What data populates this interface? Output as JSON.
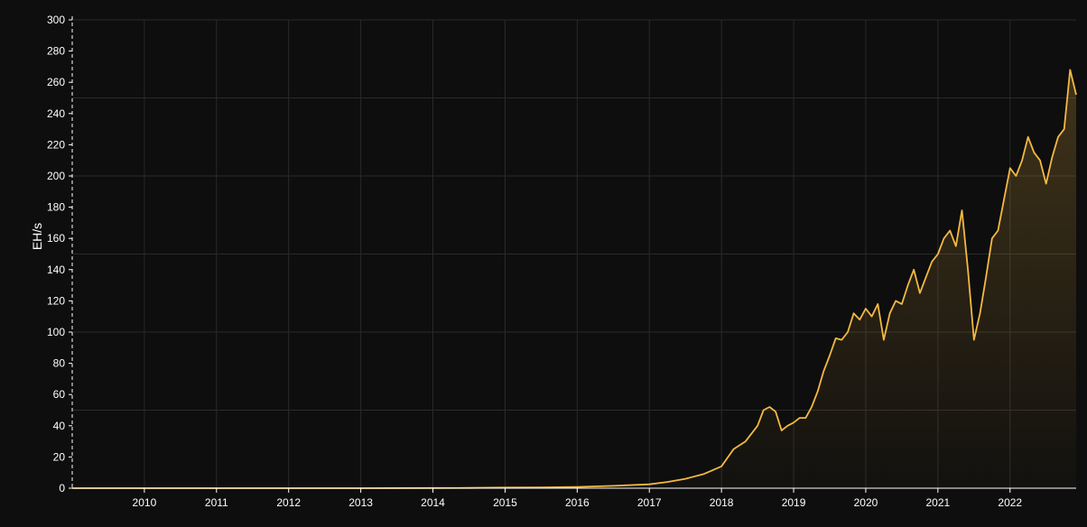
{
  "chart_data": {
    "type": "area",
    "title": "",
    "xlabel": "",
    "ylabel": "EH/s",
    "ylim": [
      0,
      300
    ],
    "y_ticks": [
      "0",
      "20",
      "40",
      "60",
      "80",
      "100",
      "120",
      "140",
      "160",
      "180",
      "200",
      "220",
      "240",
      "260",
      "280",
      "300"
    ],
    "x_ticks": [
      "2010",
      "2011",
      "2012",
      "2013",
      "2014",
      "2015",
      "2016",
      "2017",
      "2018",
      "2019",
      "2020",
      "2021",
      "2022"
    ],
    "xlim": [
      "2009-01",
      "2022-12"
    ],
    "grid": true,
    "legend": "none",
    "colors": {
      "line": "#f4b942",
      "background": "#0e0e0e",
      "grid": "#2a2a2a",
      "axis": "#ffffff"
    },
    "series": [
      {
        "x": [
          "2009-01",
          "2010-01",
          "2011-01",
          "2012-01",
          "2013-01",
          "2014-01",
          "2014-07",
          "2015-01",
          "2015-07",
          "2016-01",
          "2016-07",
          "2017-01",
          "2017-04",
          "2017-07",
          "2017-10",
          "2018-01",
          "2018-03",
          "2018-05",
          "2018-07",
          "2018-08",
          "2018-09",
          "2018-10",
          "2018-11",
          "2018-12",
          "2019-01",
          "2019-02",
          "2019-03",
          "2019-04",
          "2019-05",
          "2019-06",
          "2019-07",
          "2019-08",
          "2019-09",
          "2019-10",
          "2019-11",
          "2019-12",
          "2020-01",
          "2020-02",
          "2020-03",
          "2020-04",
          "2020-05",
          "2020-06",
          "2020-07",
          "2020-08",
          "2020-09",
          "2020-10",
          "2020-11",
          "2020-12",
          "2021-01",
          "2021-02",
          "2021-03",
          "2021-04",
          "2021-05",
          "2021-06",
          "2021-07",
          "2021-08",
          "2021-09",
          "2021-10",
          "2021-11",
          "2021-12",
          "2022-01",
          "2022-02",
          "2022-03",
          "2022-04",
          "2022-05",
          "2022-06",
          "2022-07",
          "2022-08",
          "2022-09",
          "2022-10",
          "2022-11",
          "2022-12"
        ],
        "values": [
          0,
          0,
          0,
          0,
          0,
          0.1,
          0.2,
          0.4,
          0.5,
          0.8,
          1.5,
          2.5,
          4,
          6,
          9,
          14,
          25,
          30,
          40,
          50,
          52,
          49,
          37,
          40,
          42,
          45,
          45,
          52,
          62,
          75,
          85,
          96,
          95,
          100,
          112,
          108,
          115,
          110,
          118,
          95,
          112,
          120,
          118,
          130,
          140,
          125,
          135,
          145,
          150,
          160,
          165,
          155,
          178,
          140,
          95,
          112,
          135,
          160,
          165,
          185,
          205,
          200,
          210,
          225,
          215,
          210,
          195,
          212,
          225,
          230,
          268,
          252
        ]
      }
    ]
  }
}
